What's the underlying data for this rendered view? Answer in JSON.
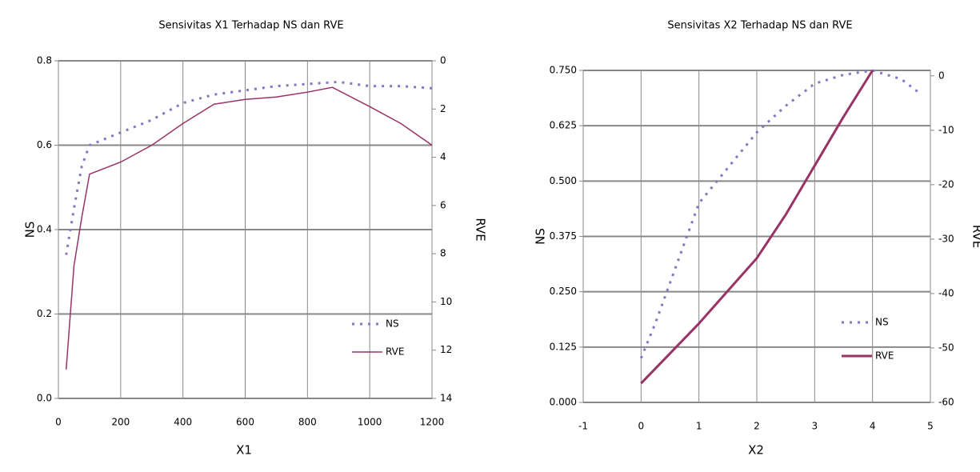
{
  "chart_data": [
    {
      "type": "line",
      "title": "Sensivitas X1 Terhadap NS dan RVE",
      "x_label": "X1",
      "y_label": "NS",
      "y2_label": "RVE",
      "xlim": [
        0,
        1200
      ],
      "xticks": [
        0,
        200,
        400,
        600,
        800,
        1000,
        1200
      ],
      "ylim": [
        0,
        0.8
      ],
      "yticks": [
        {
          "value": 0,
          "label": "0.0"
        },
        {
          "value": 0.2,
          "label": "0.2"
        },
        {
          "value": 0.4,
          "label": "0.4"
        },
        {
          "value": 0.6,
          "label": "0.6"
        },
        {
          "value": 0.8,
          "label": "0.8"
        }
      ],
      "y2lim": [
        14,
        0
      ],
      "y2ticks": [
        0,
        2,
        4,
        6,
        8,
        10,
        12,
        14
      ],
      "grid": true,
      "legend": "lower right",
      "series": [
        {
          "name": "NS",
          "color": "#7b7bbd",
          "dash": "dotted",
          "x": [
            25,
            50,
            75,
            100,
            200,
            300,
            400,
            500,
            600,
            700,
            800,
            900,
            1000,
            1100,
            1200
          ],
          "values": [
            0.34,
            0.45,
            0.55,
            0.6,
            0.63,
            0.66,
            0.7,
            0.72,
            0.73,
            0.74,
            0.745,
            0.75,
            0.74,
            0.74,
            0.735
          ]
        },
        {
          "name": "RVE",
          "color": "#993366",
          "dash": "solid",
          "axis": "y2",
          "x": [
            25,
            50,
            75,
            100,
            200,
            300,
            400,
            500,
            600,
            700,
            800,
            880,
            1000,
            1100,
            1200
          ],
          "values": [
            12.8,
            8.5,
            6.5,
            4.7,
            4.2,
            3.5,
            2.6,
            1.8,
            1.6,
            1.5,
            1.3,
            1.1,
            1.9,
            2.6,
            3.5
          ]
        }
      ]
    },
    {
      "type": "line",
      "title": "Sensivitas X2 Terhadap NS dan RVE",
      "x_label": "X2",
      "y_label": "NS",
      "y2_label": "RVE",
      "xlim": [
        -1,
        5
      ],
      "xticks": [
        -1,
        0,
        1,
        2,
        3,
        4,
        5
      ],
      "ylim": [
        0,
        0.75
      ],
      "yticks": [
        {
          "value": 0,
          "label": "0.000"
        },
        {
          "value": 0.125,
          "label": "0.125"
        },
        {
          "value": 0.25,
          "label": "0.250"
        },
        {
          "value": 0.375,
          "label": "0.375"
        },
        {
          "value": 0.5,
          "label": "0.500"
        },
        {
          "value": 0.625,
          "label": "0.625"
        },
        {
          "value": 0.75,
          "label": "0.750"
        }
      ],
      "y2lim": [
        -60,
        1
      ],
      "y2ticks": [
        -60,
        -50,
        -40,
        -30,
        -20,
        -10,
        0
      ],
      "grid": true,
      "legend": "lower right",
      "series": [
        {
          "name": "NS",
          "color": "#7b7bbd",
          "dash": "dotted",
          "x": [
            0,
            0.25,
            0.5,
            0.75,
            1,
            1.5,
            2,
            2.5,
            3,
            3.5,
            4,
            4.5,
            4.8
          ],
          "values": [
            0.1,
            0.18,
            0.27,
            0.36,
            0.45,
            0.53,
            0.61,
            0.67,
            0.72,
            0.74,
            0.75,
            0.73,
            0.7
          ]
        },
        {
          "name": "RVE",
          "color": "#993366",
          "dash": "solid",
          "axis": "y2",
          "x": [
            0,
            0.5,
            1,
            1.5,
            2,
            2.5,
            3,
            3.5,
            4
          ],
          "values": [
            -56.5,
            -51,
            -45.5,
            -39.5,
            -33.5,
            -25.5,
            -16.5,
            -7.5,
            1
          ]
        }
      ]
    }
  ]
}
